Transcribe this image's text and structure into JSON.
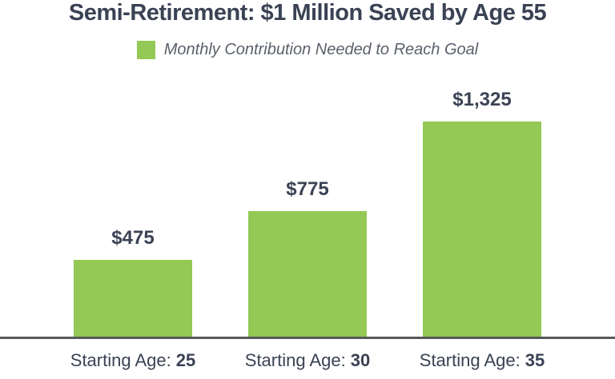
{
  "title": "Semi-Retirement: $1 Million Saved by Age 55",
  "legend": {
    "label": "Monthly Contribution Needed to Reach Goal"
  },
  "chart_data": {
    "type": "bar",
    "title": "Semi-Retirement: $1 Million Saved by Age 55",
    "series_name": "Monthly Contribution Needed to Reach Goal",
    "xlabel_prefix": "Starting Age:",
    "categories": [
      "25",
      "30",
      "35"
    ],
    "values": [
      475,
      775,
      1325
    ],
    "display_values": [
      "$475",
      "$775",
      "$1,325"
    ],
    "ylim": [
      0,
      1325
    ],
    "grid": false,
    "legend_position": "top",
    "bar_color": "#93C954"
  },
  "colors": {
    "bar_green": "#93C954",
    "text_dark": "#3A4254",
    "legend_text": "#5A616B",
    "axis_line": "#58595B"
  }
}
